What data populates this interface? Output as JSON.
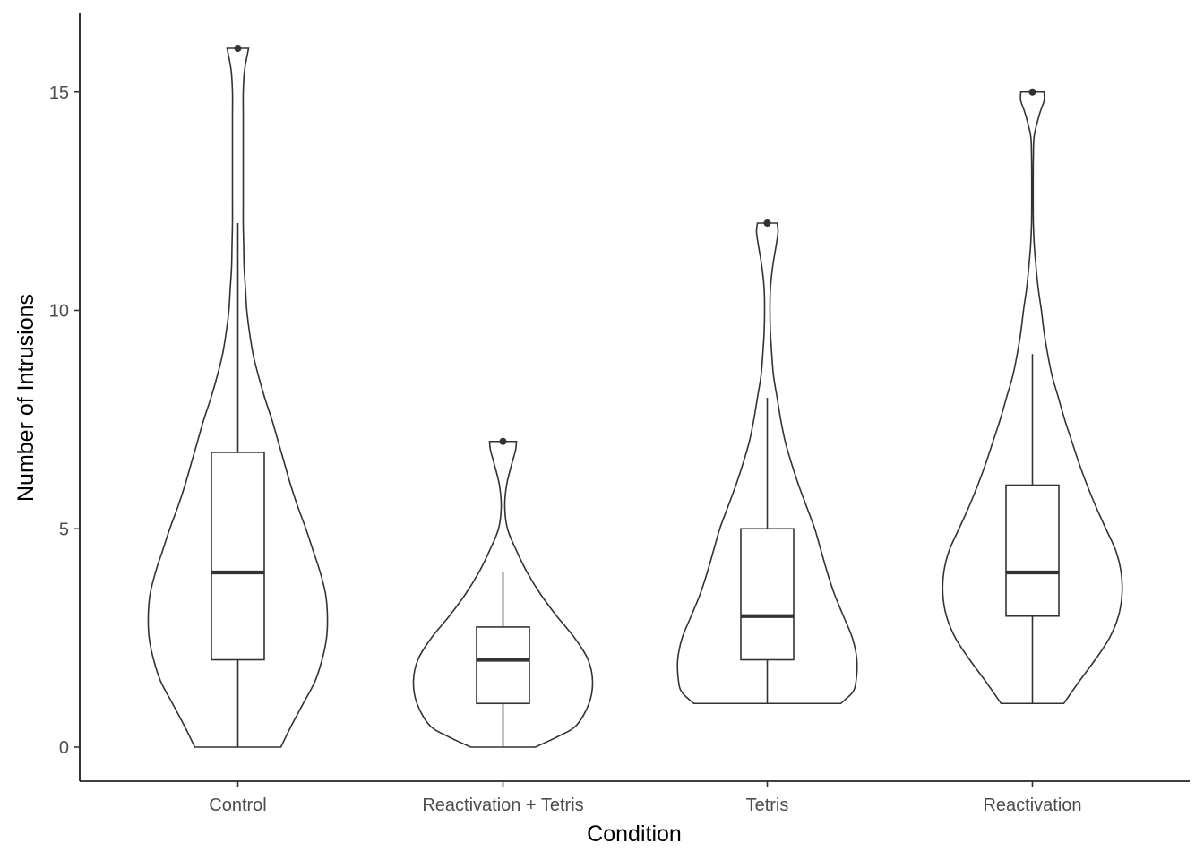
{
  "chart_data": {
    "type": "violin",
    "xlabel": "Condition",
    "ylabel": "Number of Intrusions",
    "ylim": [
      -0.8,
      16.8
    ],
    "y_ticks": [
      0,
      5,
      10,
      15
    ],
    "y_tick_labels": [
      "0",
      "5",
      "10",
      "15"
    ],
    "categories": [
      "Control",
      "Reactivation + Tetris",
      "Tetris",
      "Reactivation"
    ],
    "grid": false,
    "legend": "none",
    "line_color": "#333333",
    "groups": [
      {
        "name": "Control",
        "box": {
          "lower_whisker": 0,
          "q1": 2,
          "median": 4,
          "q3": 6.75,
          "upper_whisker": 12
        },
        "outliers": [
          16
        ],
        "violin": {
          "y": [
            0,
            0.5,
            1,
            1.5,
            2,
            2.5,
            3,
            3.5,
            4,
            4.5,
            5,
            5.5,
            6,
            6.5,
            7,
            7.5,
            8,
            8.5,
            9,
            9.5,
            10,
            10.5,
            11,
            11.5,
            12,
            12.5,
            13,
            13.5,
            14,
            14.5,
            15,
            15.5,
            16
          ],
          "density": [
            0.48,
            0.6,
            0.73,
            0.86,
            0.94,
            0.99,
            1.0,
            0.98,
            0.92,
            0.84,
            0.76,
            0.67,
            0.59,
            0.52,
            0.45,
            0.38,
            0.3,
            0.23,
            0.17,
            0.13,
            0.1,
            0.085,
            0.07,
            0.065,
            0.06,
            0.06,
            0.06,
            0.06,
            0.06,
            0.06,
            0.06,
            0.075,
            0.12
          ]
        }
      },
      {
        "name": "Reactivation + Tetris",
        "box": {
          "lower_whisker": 0,
          "q1": 1,
          "median": 2,
          "q3": 2.75,
          "upper_whisker": 4
        },
        "outliers": [
          7
        ],
        "violin": {
          "y": [
            0,
            0.25,
            0.5,
            1,
            1.5,
            2,
            2.5,
            3,
            3.5,
            4,
            4.5,
            5,
            5.5,
            6,
            6.5,
            6.8,
            7
          ],
          "density": [
            0.36,
            0.62,
            0.82,
            0.96,
            1.0,
            0.95,
            0.8,
            0.6,
            0.42,
            0.27,
            0.15,
            0.05,
            0.02,
            0.04,
            0.1,
            0.14,
            0.15
          ]
        }
      },
      {
        "name": "Tetris",
        "box": {
          "lower_whisker": 1,
          "q1": 2,
          "median": 3,
          "q3": 5,
          "upper_whisker": 8
        },
        "outliers": [
          12
        ],
        "violin": {
          "y": [
            1,
            1.25,
            1.5,
            2,
            2.5,
            3,
            3.5,
            4,
            4.5,
            5,
            5.5,
            6,
            6.5,
            7,
            7.5,
            8,
            8.5,
            9,
            9.5,
            10,
            10.5,
            11,
            11.5,
            11.8,
            12
          ],
          "density": [
            0.82,
            0.95,
            0.99,
            1.0,
            0.95,
            0.85,
            0.75,
            0.67,
            0.6,
            0.53,
            0.44,
            0.35,
            0.27,
            0.2,
            0.15,
            0.11,
            0.07,
            0.05,
            0.035,
            0.03,
            0.035,
            0.06,
            0.1,
            0.12,
            0.11
          ]
        }
      },
      {
        "name": "Reactivation",
        "box": {
          "lower_whisker": 1,
          "q1": 3,
          "median": 4,
          "q3": 6,
          "upper_whisker": 9
        },
        "outliers": [
          15
        ],
        "violin": {
          "y": [
            1,
            1.5,
            2,
            2.5,
            3,
            3.5,
            4,
            4.5,
            5,
            5.5,
            6,
            6.5,
            7,
            7.5,
            8,
            8.5,
            9,
            9.5,
            10,
            10.5,
            11,
            11.5,
            12,
            12.5,
            13,
            13.5,
            14,
            14.5,
            14.8,
            15
          ],
          "density": [
            0.35,
            0.52,
            0.7,
            0.86,
            0.96,
            1.0,
            0.99,
            0.93,
            0.82,
            0.71,
            0.61,
            0.52,
            0.44,
            0.36,
            0.29,
            0.22,
            0.17,
            0.13,
            0.1,
            0.065,
            0.04,
            0.02,
            0.01,
            0.008,
            0.008,
            0.01,
            0.02,
            0.08,
            0.13,
            0.13
          ]
        }
      }
    ]
  }
}
